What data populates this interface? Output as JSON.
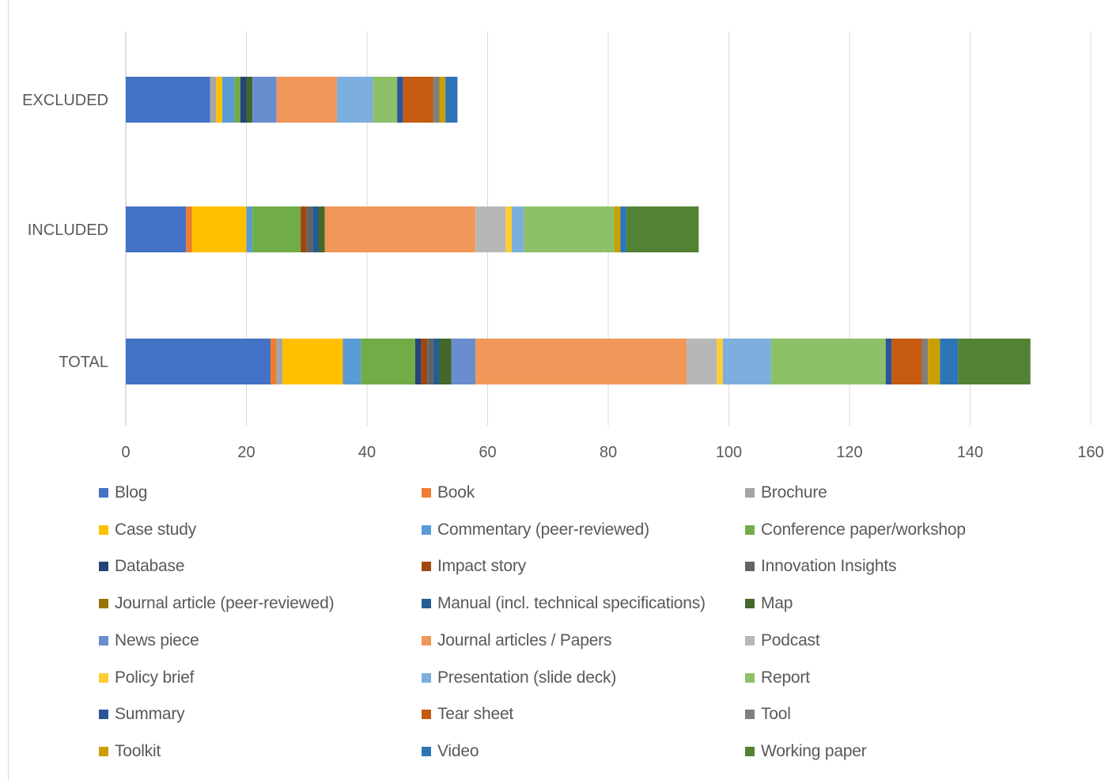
{
  "chart_data": {
    "type": "bar",
    "orientation": "horizontal",
    "stacked": true,
    "categories": [
      "EXCLUDED",
      "INCLUDED",
      "TOTAL"
    ],
    "xlim": [
      0,
      160
    ],
    "x_ticks": [
      0,
      20,
      40,
      60,
      80,
      100,
      120,
      140,
      160
    ],
    "grid": true,
    "legend_position": "bottom",
    "series": [
      {
        "name": "Blog",
        "color": "#4472C4",
        "values": [
          14,
          10,
          24
        ]
      },
      {
        "name": "Book",
        "color": "#ED7D31",
        "values": [
          0,
          1,
          1
        ]
      },
      {
        "name": "Brochure",
        "color": "#A5A5A5",
        "values": [
          1,
          0,
          1
        ]
      },
      {
        "name": "Case study",
        "color": "#FFC000",
        "values": [
          1,
          9,
          10
        ]
      },
      {
        "name": "Commentary (peer-reviewed)",
        "color": "#5B9BD5",
        "values": [
          2,
          1,
          3
        ]
      },
      {
        "name": "Conference paper/workshop",
        "color": "#70AD47",
        "values": [
          1,
          8,
          9
        ]
      },
      {
        "name": "Database",
        "color": "#264478",
        "values": [
          1,
          0,
          1
        ]
      },
      {
        "name": "Impact story",
        "color": "#9E480E",
        "values": [
          0,
          1,
          1
        ]
      },
      {
        "name": "Innovation Insights",
        "color": "#636363",
        "values": [
          0,
          1,
          1
        ]
      },
      {
        "name": "Journal article (peer-reviewed)",
        "color": "#997300",
        "values": [
          0,
          0,
          0
        ]
      },
      {
        "name": "Manual (incl. technical specifications)",
        "color": "#255E91",
        "values": [
          0,
          1,
          1
        ]
      },
      {
        "name": "Map",
        "color": "#43682B",
        "values": [
          1,
          1,
          2
        ]
      },
      {
        "name": "News piece",
        "color": "#698ED0",
        "values": [
          4,
          0,
          4
        ]
      },
      {
        "name": "Journal articles / Papers",
        "color": "#F1975A",
        "values": [
          10,
          25,
          35
        ]
      },
      {
        "name": "Podcast",
        "color": "#B7B7B7",
        "values": [
          0,
          5,
          5
        ]
      },
      {
        "name": "Policy brief",
        "color": "#FFCD33",
        "values": [
          0,
          1,
          1
        ]
      },
      {
        "name": "Presentation (slide deck)",
        "color": "#7CAFDD",
        "values": [
          6,
          2,
          8
        ]
      },
      {
        "name": "Report",
        "color": "#8CC168",
        "values": [
          4,
          15,
          19
        ]
      },
      {
        "name": "Summary",
        "color": "#2E5597",
        "values": [
          1,
          0,
          1
        ]
      },
      {
        "name": "Tear sheet",
        "color": "#C55A11",
        "values": [
          5,
          0,
          5
        ]
      },
      {
        "name": "Tool",
        "color": "#7F7F7F",
        "values": [
          1,
          0,
          1
        ]
      },
      {
        "name": "Toolkit",
        "color": "#C9A000",
        "values": [
          1,
          1,
          2
        ]
      },
      {
        "name": "Video",
        "color": "#2E75B6",
        "values": [
          2,
          1,
          3
        ]
      },
      {
        "name": "Working paper",
        "color": "#548235",
        "values": [
          0,
          12,
          12
        ]
      }
    ]
  }
}
